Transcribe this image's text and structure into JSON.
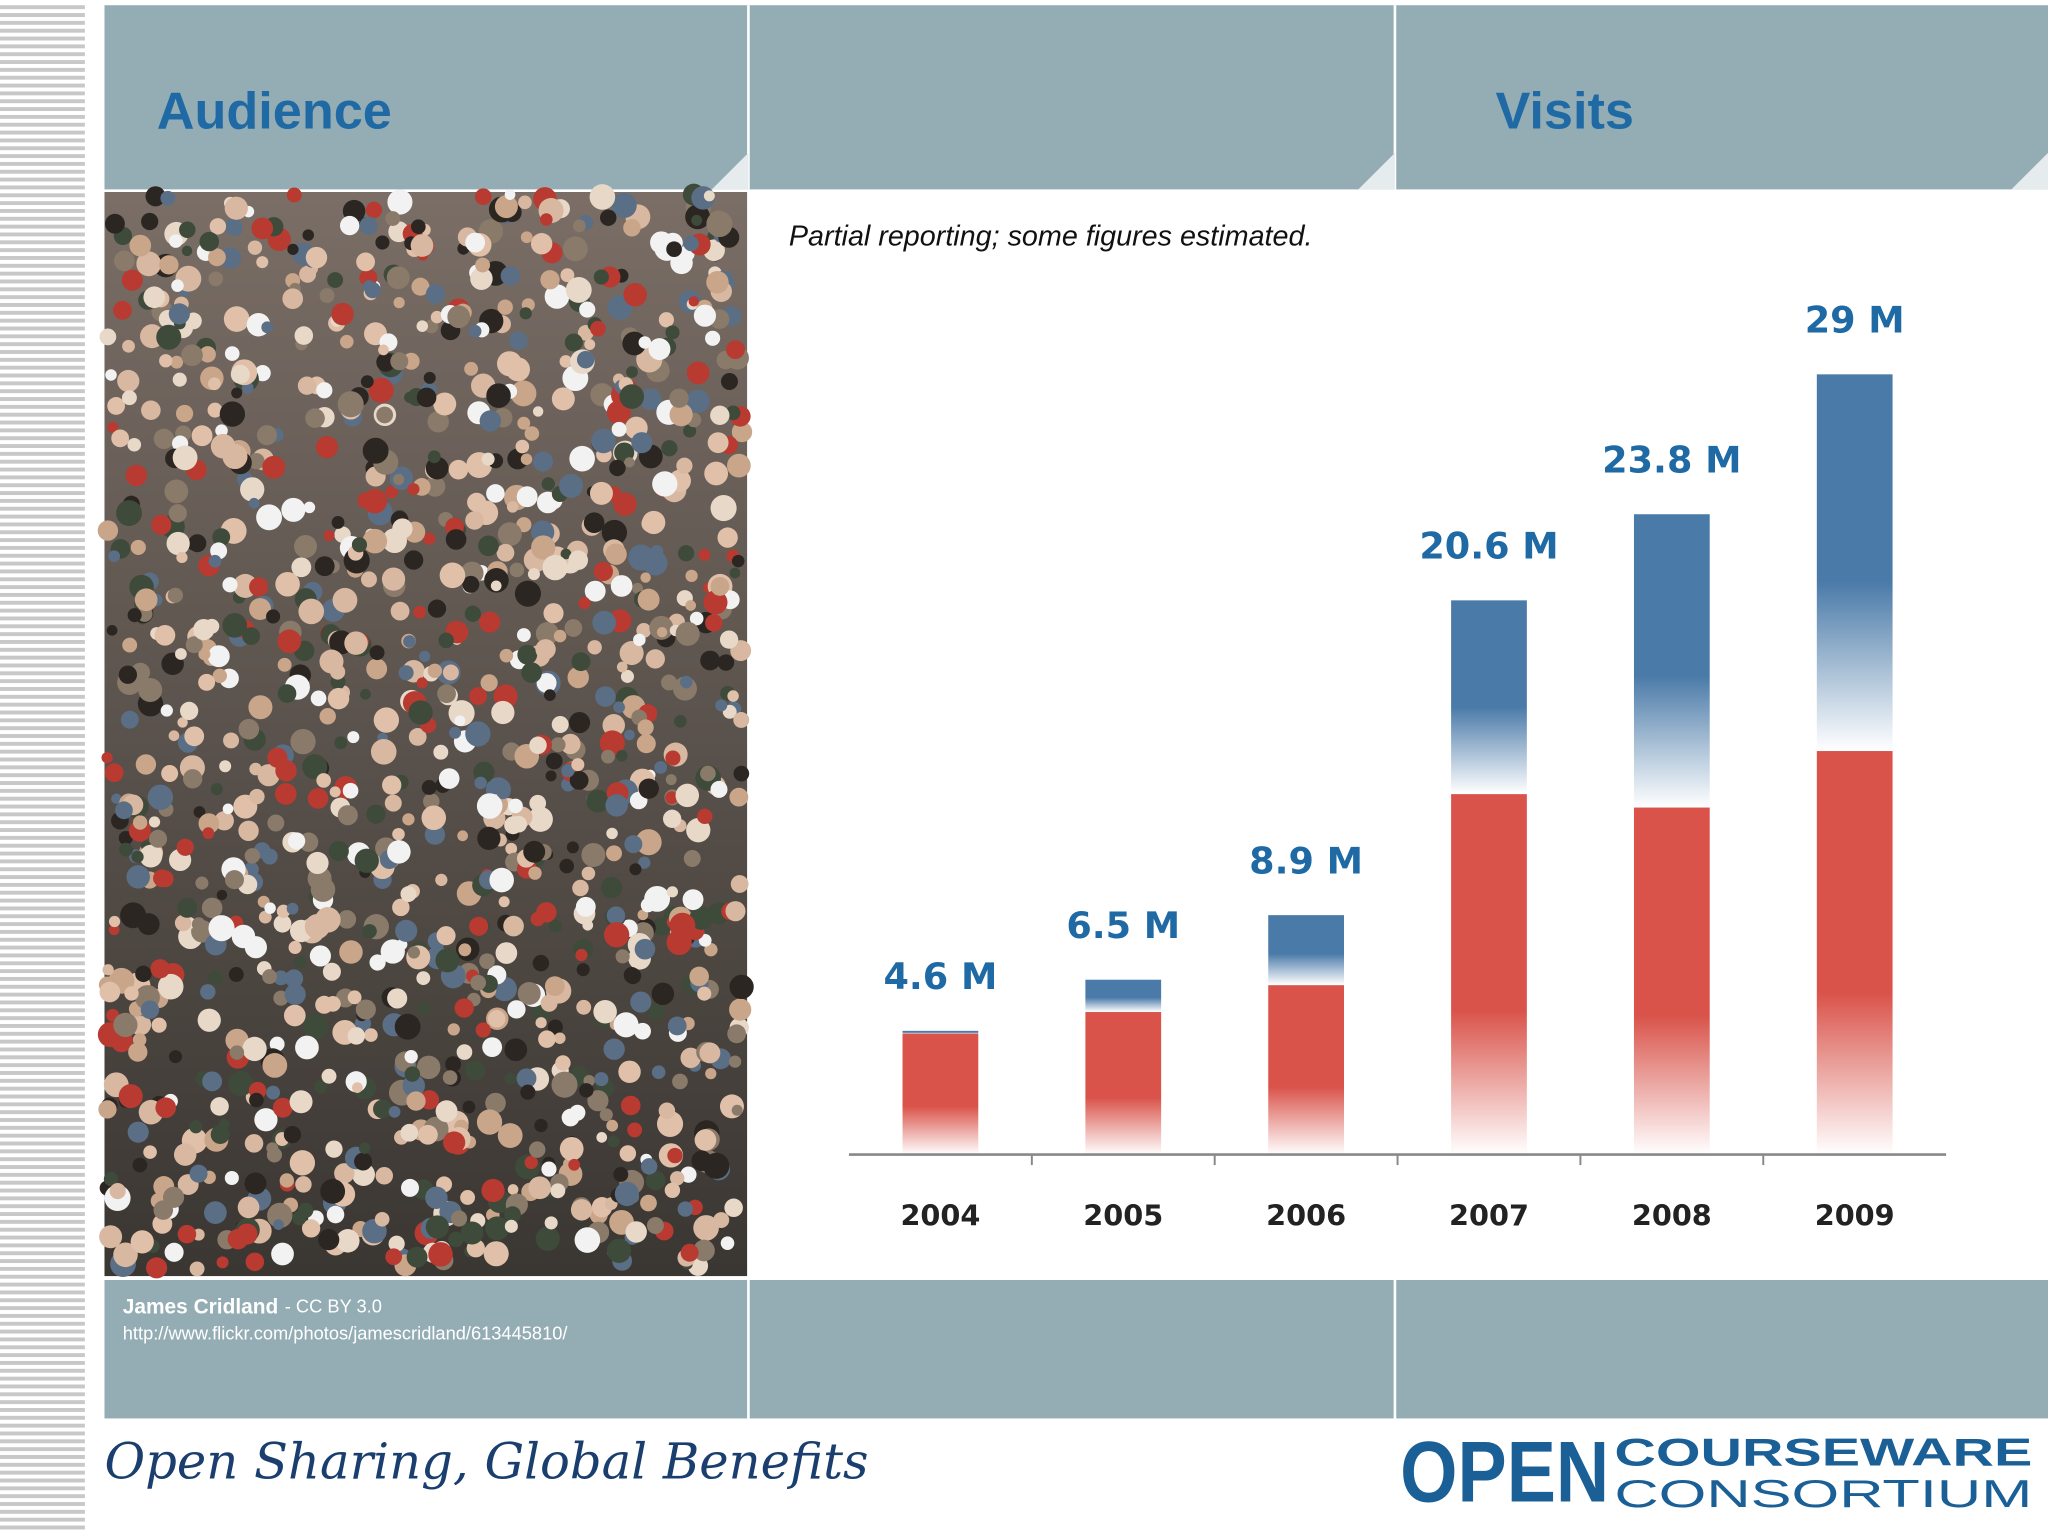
{
  "header": {
    "left_title": "Audience",
    "right_title": "Visits"
  },
  "credit": {
    "author": "James Cridland",
    "license": "- CC BY 3.0",
    "url": "http://www.flickr.com/photos/jamescridland/613445810/"
  },
  "footer": {
    "slogan": "Open Sharing, Global Benefits",
    "logo_main": "OPEN",
    "logo_top": "COURSEWARE",
    "logo_bottom": "CONSORTIUM"
  },
  "chart_data": {
    "type": "bar",
    "stacked": true,
    "subtitle": "Partial reporting; some figures estimated.",
    "categories": [
      "2004",
      "2005",
      "2006",
      "2007",
      "2008",
      "2009"
    ],
    "series": [
      {
        "color": "#d9534a",
        "values": [
          4.5,
          5.3,
          6.3,
          13.4,
          12.9,
          15.0
        ]
      },
      {
        "color": "#4a7aa8",
        "values": [
          0.1,
          1.2,
          2.6,
          7.2,
          10.9,
          14.0
        ]
      }
    ],
    "labels": [
      "4.6 M",
      "6.5 M",
      "8.9 M",
      "20.6 M",
      "23.8 M",
      "29 M"
    ],
    "ylim": [
      0,
      30
    ]
  }
}
